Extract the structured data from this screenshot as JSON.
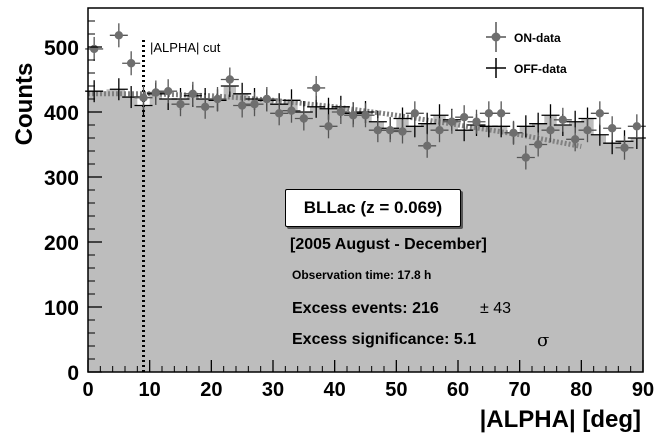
{
  "chart_data": {
    "type": "scatter",
    "xlabel": "|ALPHA| [deg]",
    "ylabel": "Counts",
    "xlim": [
      0,
      90
    ],
    "ylim": [
      0,
      560
    ],
    "x_ticks": [
      0,
      10,
      20,
      30,
      40,
      50,
      60,
      70,
      80,
      90
    ],
    "y_ticks": [
      0,
      100,
      200,
      300,
      400,
      500
    ],
    "grid": false,
    "legend_position": "top-right",
    "cut_line": {
      "x": 9,
      "label": "|ALPHA| cut"
    },
    "series": [
      {
        "name": "ON-data",
        "marker": "circle",
        "x": [
          1,
          5,
          7,
          9,
          11,
          13,
          15,
          17,
          19,
          21,
          23,
          25,
          27,
          29,
          31,
          33,
          35,
          37,
          39,
          41,
          43,
          45,
          47,
          49,
          51,
          53,
          55,
          57,
          59,
          61,
          63,
          65,
          67,
          69,
          71,
          73,
          75,
          77,
          79,
          81,
          83,
          85,
          87,
          89
        ],
        "y": [
          497,
          518,
          475,
          422,
          430,
          432,
          412,
          428,
          408,
          420,
          450,
          410,
          412,
          420,
          398,
          402,
          390,
          437,
          378,
          400,
          395,
          395,
          372,
          372,
          370,
          398,
          348,
          372,
          385,
          392,
          385,
          398,
          398,
          368,
          330,
          350,
          372,
          388,
          358,
          372,
          398,
          375,
          345,
          378
        ]
      },
      {
        "name": "OFF-data",
        "marker": "cross",
        "x": [
          1,
          5,
          7,
          9,
          11,
          13,
          15,
          17,
          19,
          21,
          23,
          25,
          27,
          29,
          31,
          33,
          35,
          37,
          39,
          41,
          43,
          45,
          47,
          49,
          51,
          53,
          55,
          57,
          59,
          61,
          63,
          65,
          67,
          69,
          71,
          73,
          75,
          77,
          79,
          81,
          83,
          85,
          87,
          89
        ],
        "y": [
          432,
          435,
          423,
          410,
          428,
          420,
          420,
          425,
          420,
          418,
          440,
          428,
          420,
          418,
          412,
          418,
          400,
          408,
          405,
          408,
          398,
          400,
          385,
          375,
          390,
          378,
          382,
          395,
          388,
          372,
          380,
          378,
          378,
          368,
          378,
          382,
          395,
          380,
          385,
          390,
          365,
          352,
          355,
          360
        ]
      }
    ],
    "fit_line": {
      "x": [
        0,
        10,
        20,
        30,
        40,
        50,
        60,
        70,
        80
      ],
      "y": [
        428,
        428,
        425,
        418,
        408,
        395,
        380,
        365,
        347
      ]
    },
    "annotations": {
      "source": "BLLac (z = 0.069)",
      "period": "[2005 August - December]",
      "obs_time": "Observation time: 17.8 h",
      "excess_events_label": "Excess events: 216",
      "excess_events_err": "± 43",
      "significance_label": "Excess significance: 5.1",
      "significance_unit": "σ"
    }
  }
}
